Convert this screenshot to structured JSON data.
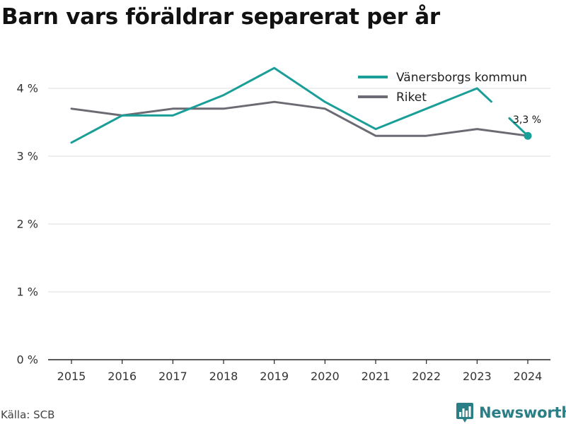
{
  "title": "Barn vars föräldrar separerat per år",
  "source": "Källa: SCB",
  "brand": "Newsworthy",
  "brand_icon": "bar-chart-pin-icon",
  "colors": {
    "series_primary": "#1a9e98",
    "series_secondary": "#6b6b73",
    "grid": "#dddddd",
    "axis": "#222222",
    "brand": "#2a7f87"
  },
  "chart_data": {
    "type": "line",
    "x": [
      "2015",
      "2016",
      "2017",
      "2018",
      "2019",
      "2020",
      "2021",
      "2022",
      "2023",
      "2024"
    ],
    "ylim": [
      0,
      4.5
    ],
    "yticks": [
      0,
      1,
      2,
      3,
      4
    ],
    "ytick_labels": [
      "0 %",
      "1 %",
      "2 %",
      "3 %",
      "4 %"
    ],
    "grid": true,
    "legend_position": "top-right",
    "series": [
      {
        "name": "Vänersborgs kommun",
        "values": [
          3.2,
          3.6,
          3.6,
          3.9,
          4.3,
          3.8,
          3.4,
          3.7,
          4.0,
          3.3
        ]
      },
      {
        "name": "Riket",
        "values": [
          3.7,
          3.6,
          3.7,
          3.7,
          3.8,
          3.7,
          3.3,
          3.3,
          3.4,
          3.3
        ]
      }
    ],
    "annotation": {
      "series": 0,
      "x": "2024",
      "label": "3,3 %"
    }
  }
}
